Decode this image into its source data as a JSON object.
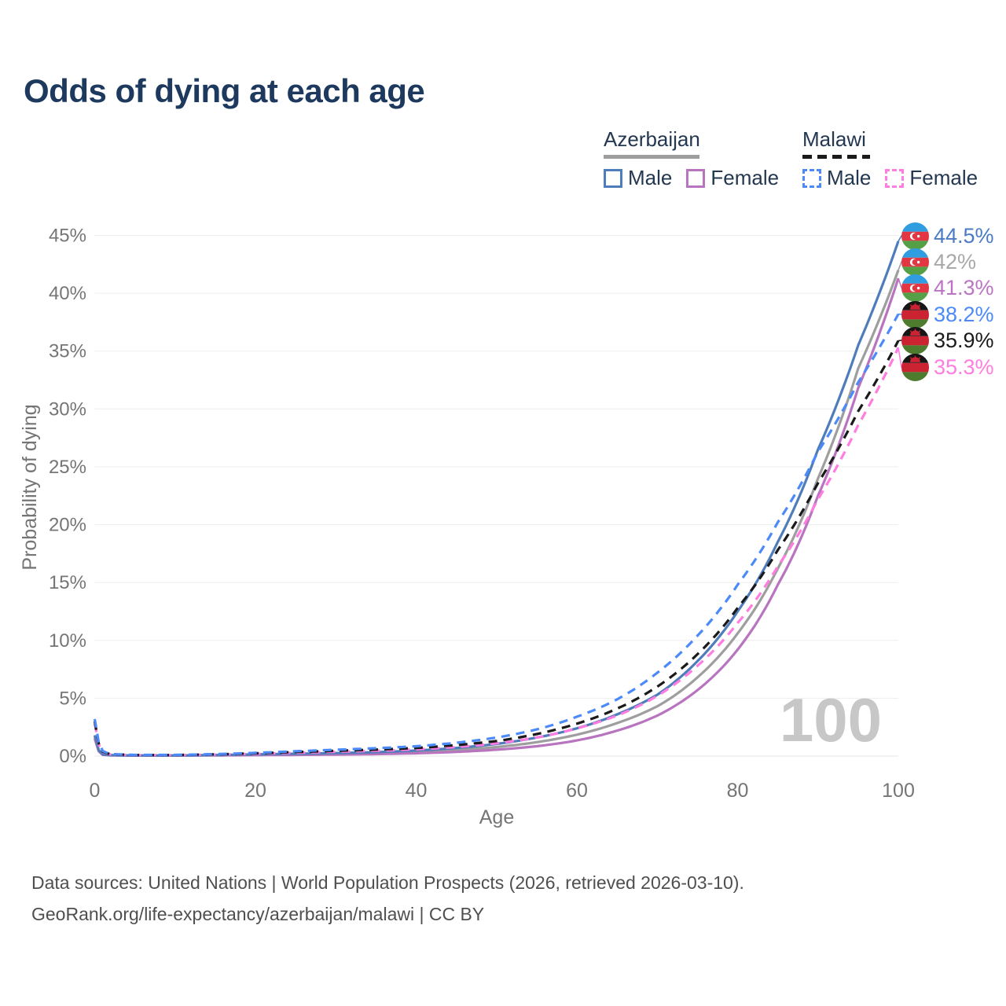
{
  "title": "Odds of dying at each age",
  "watermark": "100",
  "legend": {
    "groups": [
      {
        "country": "Azerbaijan",
        "line_style": "solid",
        "line_color": "#9e9e9e",
        "items": [
          {
            "label": "Male",
            "color": "#4f7cba",
            "style": "solid"
          },
          {
            "label": "Female",
            "color": "#b874bf",
            "style": "solid"
          }
        ]
      },
      {
        "country": "Malawi",
        "line_style": "dashed",
        "line_color": "#1a1a1a",
        "items": [
          {
            "label": "Male",
            "color": "#4b8af8",
            "style": "dashed"
          },
          {
            "label": "Female",
            "color": "#ff7ce0",
            "style": "dashed"
          }
        ]
      }
    ]
  },
  "end_labels": [
    {
      "value": "44.5%",
      "color": "#4a7bc4",
      "flag": "azerbaijan"
    },
    {
      "value": "42%",
      "color": "#a8a8a8",
      "flag": "azerbaijan"
    },
    {
      "value": "41.3%",
      "color": "#bb74c4",
      "flag": "azerbaijan"
    },
    {
      "value": "38.2%",
      "color": "#4b8af8",
      "flag": "malawi"
    },
    {
      "value": "35.9%",
      "color": "#1a1a1a",
      "flag": "malawi"
    },
    {
      "value": "35.3%",
      "color": "#ff7ce0",
      "flag": "malawi"
    }
  ],
  "footer": {
    "line1": "Data sources: United Nations | World Population Prospects (2026, retrieved 2026-03-10).",
    "line2": "GeoRank.org/life-expectancy/azerbaijan/malawi | CC BY"
  },
  "chart_data": {
    "type": "line",
    "title": "Odds of dying at each age",
    "xlabel": "Age",
    "ylabel": "Probability of dying",
    "xlim": [
      0,
      100
    ],
    "ylim_percent": [
      0,
      45
    ],
    "x_ticks": [
      0,
      20,
      40,
      60,
      80,
      100
    ],
    "y_ticks": [
      "0%",
      "5%",
      "10%",
      "15%",
      "20%",
      "25%",
      "30%",
      "35%",
      "40%",
      "45%"
    ],
    "grid": "horizontal",
    "legend_position": "top-right",
    "ages": [
      0,
      1,
      2,
      5,
      10,
      15,
      20,
      25,
      30,
      35,
      40,
      45,
      50,
      55,
      60,
      65,
      70,
      75,
      80,
      85,
      90,
      95,
      100
    ],
    "series": [
      {
        "name": "Azerbaijan Male",
        "country": "Azerbaijan",
        "sex": "Male",
        "color": "#4f7cba",
        "dash": false,
        "final_value_percent": 44.5,
        "values_percent": [
          1.8,
          0.15,
          0.08,
          0.05,
          0.05,
          0.09,
          0.15,
          0.2,
          0.26,
          0.34,
          0.48,
          0.7,
          1.05,
          1.6,
          2.4,
          3.6,
          5.3,
          8.2,
          12.5,
          18.5,
          26.5,
          35.5,
          44.5
        ]
      },
      {
        "name": "Azerbaijan Both sexes",
        "country": "Azerbaijan",
        "sex": "Both",
        "color": "#9e9e9e",
        "dash": false,
        "final_value_percent": 42,
        "values_percent": [
          1.65,
          0.13,
          0.07,
          0.045,
          0.045,
          0.08,
          0.12,
          0.16,
          0.2,
          0.26,
          0.36,
          0.52,
          0.78,
          1.2,
          1.85,
          2.85,
          4.3,
          6.8,
          10.6,
          16.2,
          24.0,
          33.5,
          42.0
        ]
      },
      {
        "name": "Azerbaijan Female",
        "country": "Azerbaijan",
        "sex": "Female",
        "color": "#b874bf",
        "dash": false,
        "final_value_percent": 41.3,
        "values_percent": [
          1.5,
          0.11,
          0.06,
          0.04,
          0.04,
          0.06,
          0.08,
          0.1,
          0.13,
          0.17,
          0.24,
          0.36,
          0.55,
          0.85,
          1.35,
          2.2,
          3.5,
          5.7,
          9.2,
          14.8,
          22.5,
          31.8,
          41.3
        ]
      },
      {
        "name": "Malawi Male",
        "country": "Malawi",
        "sex": "Male",
        "color": "#4b8af8",
        "dash": true,
        "final_value_percent": 38.2,
        "values_percent": [
          3.2,
          0.45,
          0.18,
          0.1,
          0.1,
          0.17,
          0.28,
          0.42,
          0.55,
          0.68,
          0.85,
          1.15,
          1.6,
          2.3,
          3.4,
          4.9,
          7.2,
          10.4,
          14.8,
          20.2,
          26.3,
          32.3,
          38.2
        ]
      },
      {
        "name": "Malawi Both sexes",
        "country": "Malawi",
        "sex": "Both",
        "color": "#1a1a1a",
        "dash": true,
        "final_value_percent": 35.9,
        "values_percent": [
          3.0,
          0.4,
          0.16,
          0.09,
          0.09,
          0.15,
          0.24,
          0.35,
          0.46,
          0.56,
          0.7,
          0.95,
          1.3,
          1.9,
          2.8,
          4.1,
          6.0,
          8.8,
          12.8,
          17.8,
          23.6,
          29.8,
          35.9
        ]
      },
      {
        "name": "Malawi Female",
        "country": "Malawi",
        "sex": "Female",
        "color": "#ff7ce0",
        "dash": true,
        "final_value_percent": 35.3,
        "values_percent": [
          2.8,
          0.36,
          0.14,
          0.08,
          0.08,
          0.13,
          0.2,
          0.28,
          0.37,
          0.46,
          0.58,
          0.78,
          1.1,
          1.6,
          2.4,
          3.5,
          5.2,
          7.8,
          11.5,
          16.4,
          22.2,
          28.6,
          35.3
        ]
      }
    ]
  }
}
